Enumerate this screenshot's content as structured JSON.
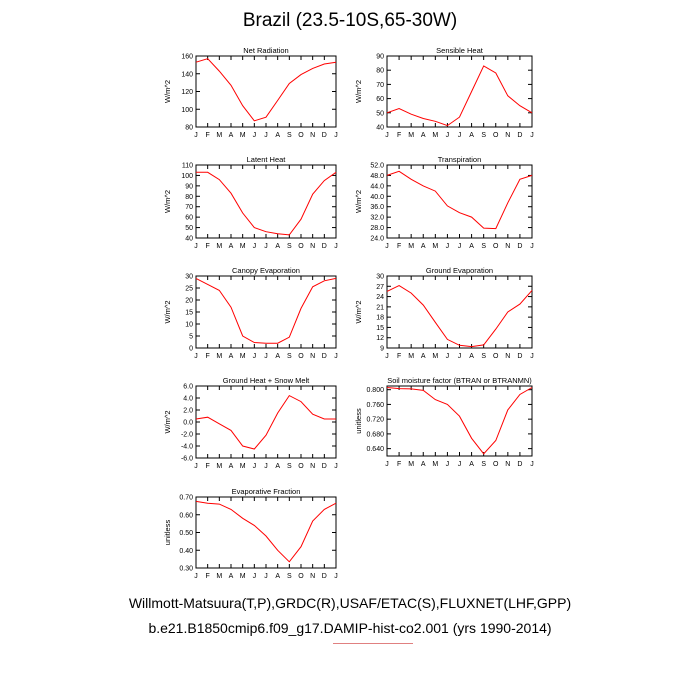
{
  "title": "Brazil (23.5-10S,65-30W)",
  "footer": {
    "line1": "Willmott-Matsuura(T,P),GRDC(R),USAF/ETAC(S),FLUXNET(LHF,GPP)",
    "line2": "b.e21.B1850cmip6.f09_g17.DAMIP-hist-co2.001 (yrs 1990-2014)"
  },
  "colors": {
    "series": "#ff0000",
    "axis": "#000000"
  },
  "chart_data": [
    {
      "type": "line",
      "title": "Net Radiation",
      "ylabel": "W/m^2",
      "categories": [
        "J",
        "F",
        "M",
        "A",
        "M",
        "J",
        "J",
        "A",
        "S",
        "O",
        "N",
        "D",
        "J"
      ],
      "values": [
        153,
        157,
        143,
        127,
        104,
        87,
        91,
        110,
        129,
        139,
        146,
        151,
        153
      ],
      "ylim": [
        80,
        160
      ],
      "yticks": [
        "80",
        "100",
        "120",
        "140",
        "160"
      ]
    },
    {
      "type": "line",
      "title": "Sensible Heat",
      "ylabel": "W/m^2",
      "categories": [
        "J",
        "F",
        "M",
        "A",
        "M",
        "J",
        "J",
        "A",
        "S",
        "O",
        "N",
        "D",
        "J"
      ],
      "values": [
        50,
        53,
        49,
        46,
        44,
        41,
        47,
        65,
        83,
        78,
        62,
        55,
        50
      ],
      "ylim": [
        40,
        90
      ],
      "yticks": [
        "40",
        "50",
        "60",
        "70",
        "80",
        "90"
      ]
    },
    {
      "type": "line",
      "title": "Latent Heat",
      "ylabel": "W/m^2",
      "categories": [
        "J",
        "F",
        "M",
        "A",
        "M",
        "J",
        "J",
        "A",
        "S",
        "O",
        "N",
        "D",
        "J"
      ],
      "values": [
        103,
        103,
        96,
        83,
        64,
        50,
        46,
        44,
        43,
        58,
        82,
        95,
        103
      ],
      "ylim": [
        40,
        110
      ],
      "yticks": [
        "40",
        "50",
        "60",
        "70",
        "80",
        "90",
        "100",
        "110"
      ]
    },
    {
      "type": "line",
      "title": "Transpiration",
      "ylabel": "W/m^2",
      "categories": [
        "J",
        "F",
        "M",
        "A",
        "M",
        "J",
        "J",
        "A",
        "S",
        "O",
        "N",
        "D",
        "J"
      ],
      "values": [
        48.0,
        49.6,
        46.5,
        44.0,
        42.0,
        36.3,
        33.7,
        32.0,
        27.8,
        27.6,
        37.5,
        46.5,
        48.0
      ],
      "ylim": [
        24.0,
        52.0
      ],
      "yticks": [
        "24.0",
        "28.0",
        "32.0",
        "36.0",
        "40.0",
        "44.0",
        "48.0",
        "52.0"
      ]
    },
    {
      "type": "line",
      "title": "Canopy Evaporation",
      "ylabel": "W/m^2",
      "categories": [
        "J",
        "F",
        "M",
        "A",
        "M",
        "J",
        "J",
        "A",
        "S",
        "O",
        "N",
        "D",
        "J"
      ],
      "values": [
        29,
        26.5,
        24,
        17,
        5,
        2.3,
        2,
        2,
        4.5,
        16.5,
        25.5,
        28,
        29
      ],
      "ylim": [
        0,
        30
      ],
      "yticks": [
        "0",
        "5",
        "10",
        "15",
        "20",
        "25",
        "30"
      ]
    },
    {
      "type": "line",
      "title": "Ground Evaporation",
      "ylabel": "W/m^2",
      "categories": [
        "J",
        "F",
        "M",
        "A",
        "M",
        "J",
        "J",
        "A",
        "S",
        "O",
        "N",
        "D",
        "J"
      ],
      "values": [
        25.5,
        27.2,
        25,
        21.5,
        16.5,
        11.5,
        9.8,
        9.4,
        9.9,
        14.5,
        19.5,
        21.8,
        25.8
      ],
      "ylim": [
        9,
        30
      ],
      "yticks": [
        "9",
        "12",
        "15",
        "18",
        "21",
        "24",
        "27",
        "30"
      ]
    },
    {
      "type": "line",
      "title": "Ground Heat + Snow Melt",
      "ylabel": "W/m^2",
      "categories": [
        "J",
        "F",
        "M",
        "A",
        "M",
        "J",
        "J",
        "A",
        "S",
        "O",
        "N",
        "D",
        "J"
      ],
      "values": [
        0.5,
        0.8,
        -0.3,
        -1.4,
        -4.0,
        -4.5,
        -2.2,
        1.5,
        4.4,
        3.4,
        1.3,
        0.5,
        0.5
      ],
      "ylim": [
        -6.0,
        6.0
      ],
      "yticks": [
        "-6.0",
        "-4.0",
        "-2.0",
        "0.0",
        "2.0",
        "4.0",
        "6.0"
      ]
    },
    {
      "type": "line",
      "title": "Soil moisture factor (BTRAN or BTRANMN)",
      "ylabel": "unitless",
      "categories": [
        "J",
        "F",
        "M",
        "A",
        "M",
        "J",
        "J",
        "A",
        "S",
        "O",
        "N",
        "D",
        "J"
      ],
      "values": [
        0.806,
        0.803,
        0.802,
        0.798,
        0.773,
        0.76,
        0.728,
        0.668,
        0.626,
        0.662,
        0.745,
        0.787,
        0.806
      ],
      "ylim": [
        0.62,
        0.81
      ],
      "yticks": [
        "0.640",
        "0.680",
        "0.720",
        "0.760",
        "0.800"
      ]
    },
    {
      "type": "line",
      "title": "Evaporative Fraction",
      "ylabel": "unitless",
      "categories": [
        "J",
        "F",
        "M",
        "A",
        "M",
        "J",
        "J",
        "A",
        "S",
        "O",
        "N",
        "D",
        "J"
      ],
      "values": [
        0.675,
        0.665,
        0.66,
        0.63,
        0.58,
        0.54,
        0.48,
        0.4,
        0.335,
        0.42,
        0.565,
        0.63,
        0.665
      ],
      "ylim": [
        0.3,
        0.7
      ],
      "yticks": [
        "0.30",
        "0.40",
        "0.50",
        "0.60",
        "0.70"
      ]
    }
  ]
}
